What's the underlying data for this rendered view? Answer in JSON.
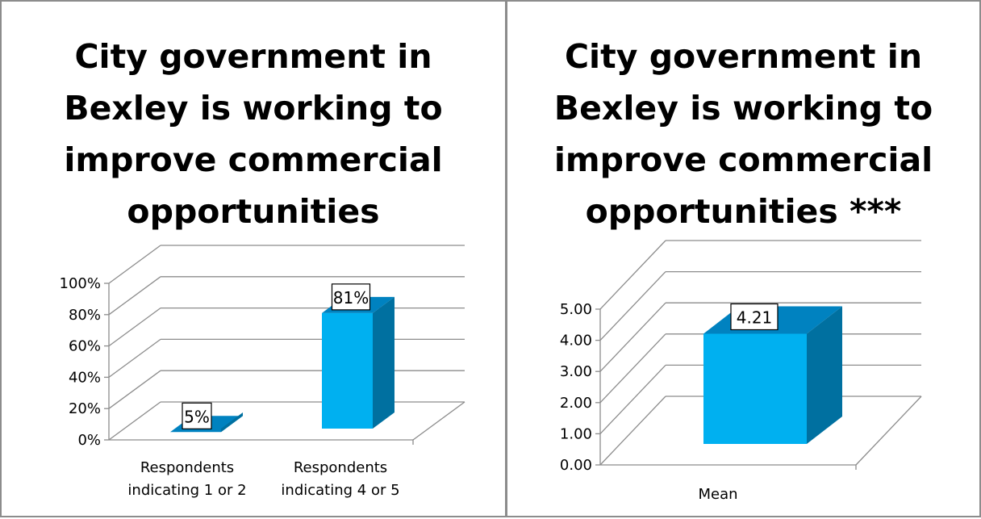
{
  "chart_data": [
    {
      "type": "bar",
      "title": "City government in Bexley is working to improve commercial opportunities",
      "categories": [
        "Respondents indicating 1 or 2",
        "Respondents indicating 4 or 5"
      ],
      "values": [
        5,
        81
      ],
      "value_labels": [
        "5%",
        "81%"
      ],
      "ylim": [
        0,
        100
      ],
      "yticks": [
        "0%",
        "20%",
        "40%",
        "60%",
        "80%",
        "100%"
      ],
      "grid": true,
      "style": "3d"
    },
    {
      "type": "bar",
      "title": "City government in Bexley is working to improve commercial opportunities ***",
      "categories": [
        "Mean"
      ],
      "values": [
        4.21
      ],
      "value_labels": [
        "4.21"
      ],
      "ylim": [
        0,
        5
      ],
      "yticks": [
        "0.00",
        "1.00",
        "2.00",
        "3.00",
        "4.00",
        "5.00"
      ],
      "grid": true,
      "style": "3d"
    }
  ],
  "colors": {
    "bar_front": "#00b0f0",
    "bar_side": "#0070a0",
    "bar_top": "#0082c0",
    "grid": "#8c8c8c"
  }
}
